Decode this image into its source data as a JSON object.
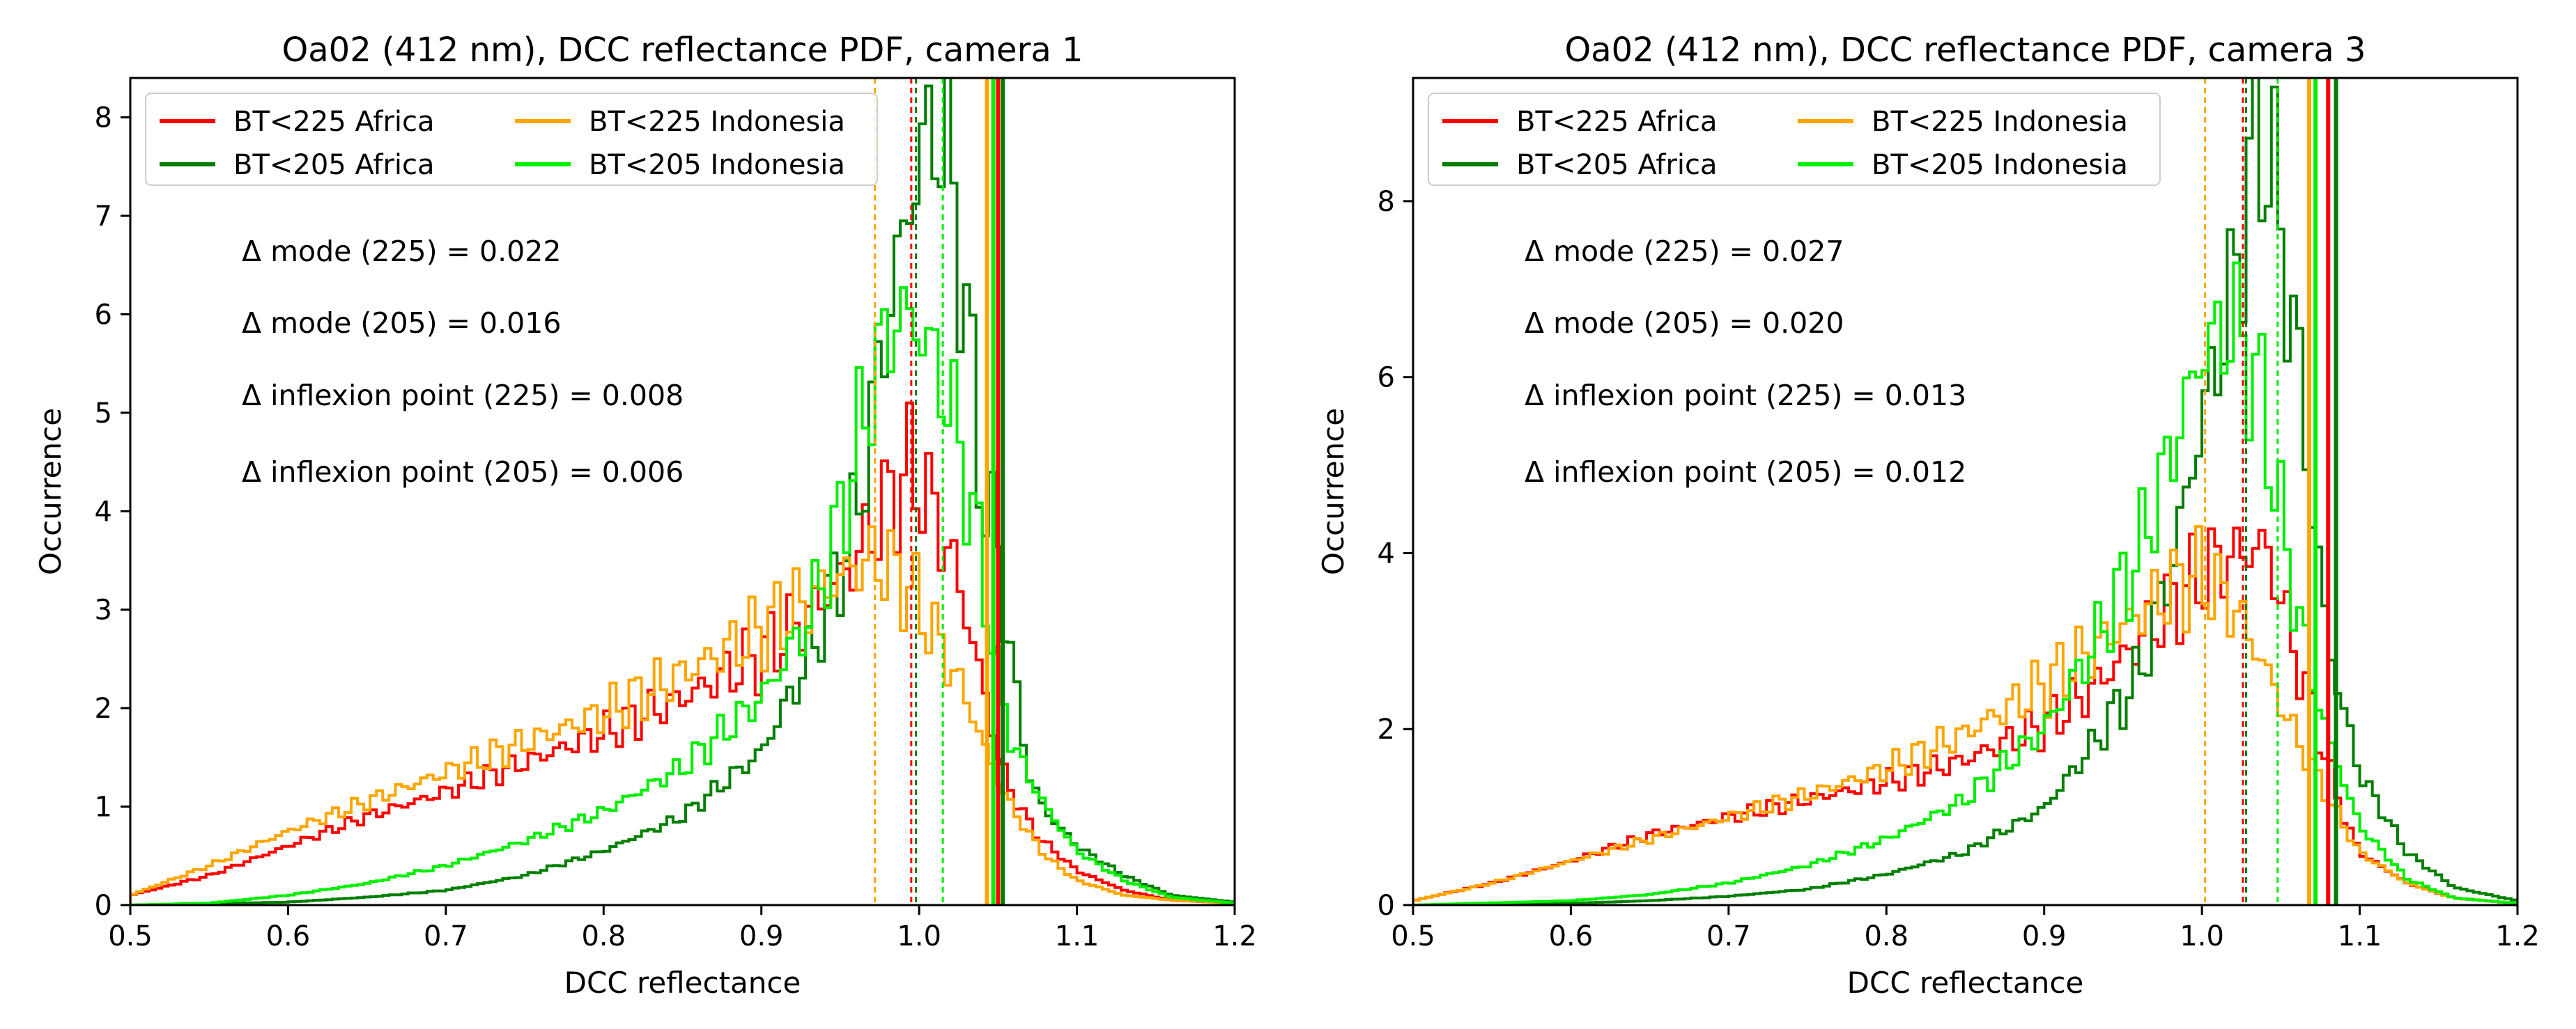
{
  "figure": {
    "panels": [
      "camera-1",
      "camera-3"
    ]
  },
  "chart_data": [
    {
      "type": "step-histogram",
      "title": "Oa02 (412 nm), DCC reflectance PDF, camera 1",
      "xlabel": "DCC reflectance",
      "ylabel": "Occurrence",
      "xlim": [
        0.5,
        1.2
      ],
      "ylim": [
        0,
        8.4
      ],
      "xticks": [
        0.5,
        0.6,
        0.7,
        0.8,
        0.9,
        1.0,
        1.1,
        1.2
      ],
      "xtick_labels": [
        "0.5",
        "0.6",
        "0.7",
        "0.8",
        "0.9",
        "1.0",
        "1.1",
        "1.2"
      ],
      "yticks": [
        0,
        1,
        2,
        3,
        4,
        5,
        6,
        7,
        8
      ],
      "ytick_labels": [
        "0",
        "1",
        "2",
        "3",
        "4",
        "5",
        "6",
        "7",
        "8"
      ],
      "legend_position": "top-left",
      "series": [
        {
          "name": "BT<225 Africa",
          "color": "#ff0000",
          "peak_x": 0.995,
          "x": [
            0.5,
            0.55,
            0.6,
            0.65,
            0.7,
            0.75,
            0.8,
            0.85,
            0.9,
            0.93,
            0.96,
            0.98,
            0.995,
            1.01,
            1.025,
            1.035,
            1.045,
            1.05,
            1.06,
            1.075,
            1.1,
            1.13,
            1.16,
            1.2
          ],
          "values": [
            0.1,
            0.3,
            0.6,
            0.9,
            1.15,
            1.45,
            1.75,
            2.1,
            2.55,
            2.95,
            3.5,
            4.1,
            4.45,
            4.0,
            3.3,
            2.6,
            1.9,
            1.5,
            1.1,
            0.7,
            0.35,
            0.15,
            0.05,
            0.02
          ]
        },
        {
          "name": "BT<205 Africa",
          "color": "#007f00",
          "peak_x": 1.01,
          "x": [
            0.5,
            0.6,
            0.65,
            0.7,
            0.75,
            0.8,
            0.85,
            0.9,
            0.93,
            0.96,
            0.98,
            1.0,
            1.01,
            1.02,
            1.03,
            1.04,
            1.05,
            1.06,
            1.07,
            1.08,
            1.1,
            1.13,
            1.16,
            1.2
          ],
          "values": [
            0.0,
            0.03,
            0.08,
            0.15,
            0.3,
            0.55,
            0.9,
            1.55,
            2.5,
            3.9,
            6.0,
            7.6,
            7.95,
            7.5,
            6.0,
            4.2,
            3.6,
            2.3,
            1.3,
            0.95,
            0.6,
            0.3,
            0.1,
            0.03
          ]
        },
        {
          "name": "BT<225 Indonesia",
          "color": "#ffa500",
          "peak_x": 0.972,
          "x": [
            0.5,
            0.55,
            0.6,
            0.65,
            0.7,
            0.75,
            0.8,
            0.85,
            0.9,
            0.94,
            0.96,
            0.975,
            0.99,
            1.0,
            1.02,
            1.035,
            1.045,
            1.06,
            1.08,
            1.1,
            1.13,
            1.16,
            1.2
          ],
          "values": [
            0.1,
            0.4,
            0.75,
            1.05,
            1.35,
            1.65,
            1.95,
            2.35,
            2.8,
            3.2,
            3.45,
            3.5,
            3.3,
            3.05,
            2.45,
            1.9,
            1.45,
            0.95,
            0.5,
            0.25,
            0.1,
            0.05,
            0.02
          ]
        },
        {
          "name": "BT<205 Indonesia",
          "color": "#00ee00",
          "peak_x": 0.985,
          "x": [
            0.5,
            0.55,
            0.6,
            0.65,
            0.7,
            0.75,
            0.8,
            0.85,
            0.9,
            0.93,
            0.95,
            0.97,
            0.985,
            1.0,
            1.02,
            1.035,
            1.045,
            1.05,
            1.06,
            1.08,
            1.1,
            1.13,
            1.16,
            1.2
          ],
          "values": [
            0.0,
            0.02,
            0.1,
            0.22,
            0.4,
            0.65,
            0.95,
            1.4,
            2.1,
            2.9,
            3.9,
            5.3,
            6.0,
            5.9,
            5.1,
            3.9,
            2.9,
            2.3,
            1.6,
            1.0,
            0.55,
            0.25,
            0.08,
            0.02
          ]
        }
      ],
      "vlines": [
        {
          "x": 0.972,
          "color": "#ffa500",
          "style": "dashed"
        },
        {
          "x": 0.995,
          "color": "#ff0000",
          "style": "dashed"
        },
        {
          "x": 0.998,
          "color": "#007f00",
          "style": "dashed"
        },
        {
          "x": 1.015,
          "color": "#00ee00",
          "style": "dashed"
        },
        {
          "x": 1.043,
          "color": "#ffa500",
          "style": "solid"
        },
        {
          "x": 1.047,
          "color": "#00ee00",
          "style": "solid"
        },
        {
          "x": 1.05,
          "color": "#ff0000",
          "style": "solid"
        },
        {
          "x": 1.053,
          "color": "#007f00",
          "style": "solid"
        }
      ],
      "annotations": [
        "Δ mode (225) = 0.022",
        "Δ mode (205) = 0.016",
        "Δ inflexion point (225) = 0.008",
        "Δ inflexion point (205) = 0.006"
      ]
    },
    {
      "type": "step-histogram",
      "title": "Oa02 (412 nm), DCC reflectance PDF, camera 3",
      "xlabel": "DCC reflectance",
      "ylabel": "Occurrence",
      "xlim": [
        0.5,
        1.2
      ],
      "ylim": [
        0,
        9.4
      ],
      "xticks": [
        0.5,
        0.6,
        0.7,
        0.8,
        0.9,
        1.0,
        1.1,
        1.2
      ],
      "xtick_labels": [
        "0.5",
        "0.6",
        "0.7",
        "0.8",
        "0.9",
        "1.0",
        "1.1",
        "1.2"
      ],
      "yticks": [
        0,
        2,
        4,
        6,
        8
      ],
      "ytick_labels": [
        "0",
        "2",
        "4",
        "6",
        "8"
      ],
      "legend_position": "top-left",
      "series": [
        {
          "name": "BT<225 Africa",
          "color": "#ff0000",
          "peak_x": 1.04,
          "x": [
            0.5,
            0.55,
            0.6,
            0.65,
            0.7,
            0.75,
            0.8,
            0.85,
            0.9,
            0.93,
            0.96,
            0.99,
            1.01,
            1.025,
            1.04,
            1.05,
            1.06,
            1.07,
            1.08,
            1.09,
            1.1,
            1.13,
            1.16,
            1.2
          ],
          "values": [
            0.05,
            0.25,
            0.5,
            0.8,
            1.0,
            1.2,
            1.4,
            1.65,
            2.05,
            2.45,
            3.0,
            3.6,
            3.9,
            4.0,
            4.1,
            3.5,
            2.8,
            2.2,
            1.6,
            1.0,
            0.6,
            0.25,
            0.08,
            0.02
          ]
        },
        {
          "name": "BT<205 Africa",
          "color": "#007f00",
          "peak_x": 1.04,
          "x": [
            0.5,
            0.6,
            0.65,
            0.7,
            0.75,
            0.8,
            0.85,
            0.9,
            0.93,
            0.96,
            0.98,
            1.0,
            1.02,
            1.03,
            1.04,
            1.05,
            1.06,
            1.07,
            1.08,
            1.09,
            1.1,
            1.13,
            1.16,
            1.2
          ],
          "values": [
            0.0,
            0.02,
            0.05,
            0.1,
            0.18,
            0.35,
            0.6,
            1.1,
            1.8,
            2.6,
            3.8,
            5.5,
            7.0,
            8.3,
            8.9,
            7.6,
            6.4,
            4.5,
            3.0,
            2.2,
            1.5,
            0.6,
            0.2,
            0.05
          ]
        },
        {
          "name": "BT<225 Indonesia",
          "color": "#ffa500",
          "peak_x": 1.0,
          "x": [
            0.5,
            0.55,
            0.6,
            0.65,
            0.7,
            0.75,
            0.8,
            0.85,
            0.9,
            0.93,
            0.96,
            0.98,
            1.0,
            1.02,
            1.035,
            1.05,
            1.06,
            1.075,
            1.09,
            1.1,
            1.13,
            1.16,
            1.2
          ],
          "values": [
            0.05,
            0.25,
            0.5,
            0.75,
            1.0,
            1.25,
            1.55,
            1.95,
            2.5,
            2.9,
            3.3,
            3.6,
            3.75,
            3.4,
            2.9,
            2.3,
            1.9,
            1.4,
            0.9,
            0.6,
            0.25,
            0.08,
            0.02
          ]
        },
        {
          "name": "BT<205 Indonesia",
          "color": "#00ee00",
          "peak_x": 1.02,
          "x": [
            0.5,
            0.6,
            0.65,
            0.7,
            0.75,
            0.8,
            0.85,
            0.9,
            0.93,
            0.96,
            0.98,
            1.0,
            1.02,
            1.03,
            1.04,
            1.05,
            1.06,
            1.07,
            1.08,
            1.1,
            1.13,
            1.16,
            1.2
          ],
          "values": [
            0.0,
            0.05,
            0.12,
            0.25,
            0.45,
            0.75,
            1.2,
            2.0,
            2.9,
            4.0,
            5.1,
            6.3,
            6.6,
            6.2,
            5.6,
            4.4,
            3.4,
            2.6,
            1.9,
            0.9,
            0.3,
            0.08,
            0.02
          ]
        }
      ],
      "vlines": [
        {
          "x": 1.002,
          "color": "#ffa500",
          "style": "dashed"
        },
        {
          "x": 1.026,
          "color": "#ff0000",
          "style": "dashed"
        },
        {
          "x": 1.028,
          "color": "#007f00",
          "style": "dashed"
        },
        {
          "x": 1.048,
          "color": "#00ee00",
          "style": "dashed"
        },
        {
          "x": 1.068,
          "color": "#ffa500",
          "style": "solid"
        },
        {
          "x": 1.072,
          "color": "#00ee00",
          "style": "solid"
        },
        {
          "x": 1.08,
          "color": "#ff0000",
          "style": "solid"
        },
        {
          "x": 1.085,
          "color": "#007f00",
          "style": "solid"
        }
      ],
      "annotations": [
        "Δ mode (225) = 0.027",
        "Δ mode (205) = 0.020",
        "Δ inflexion point (225) = 0.013",
        "Δ inflexion point (205) = 0.012"
      ]
    }
  ]
}
